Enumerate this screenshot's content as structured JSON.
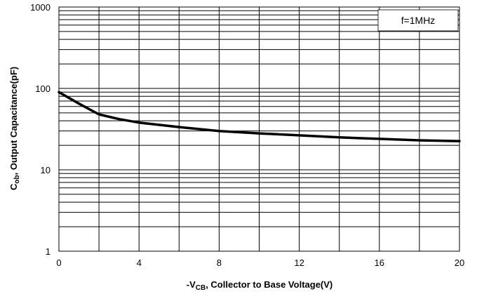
{
  "chart_data": {
    "type": "line",
    "xscale": "linear",
    "yscale": "log",
    "xlim": [
      0,
      20
    ],
    "ylim": [
      1,
      1000
    ],
    "grid": true,
    "x_ticks": [
      0,
      2,
      4,
      6,
      8,
      10,
      12,
      14,
      16,
      18,
      20
    ],
    "x_tick_labels": [
      "0",
      "4",
      "8",
      "12",
      "16",
      "20"
    ],
    "y_tick_labels": [
      "1",
      "10",
      "100",
      "1000"
    ],
    "xlabel": {
      "prefix": "-V",
      "sub": "CB",
      "suffix": ", Collector to Base Voltage(V)"
    },
    "ylabel": {
      "prefix": "C",
      "sub": "ob",
      "suffix": ", Output Capacitance(pF)"
    },
    "annotation": "f=1MHz",
    "series": [
      {
        "color": "#000000",
        "x": [
          0,
          1,
          2,
          3,
          4,
          6,
          8,
          10,
          12,
          14,
          16,
          18,
          20
        ],
        "y": [
          90,
          65,
          48,
          42,
          38,
          33.5,
          30,
          28,
          26.5,
          25,
          24,
          23,
          22.5
        ]
      }
    ]
  }
}
